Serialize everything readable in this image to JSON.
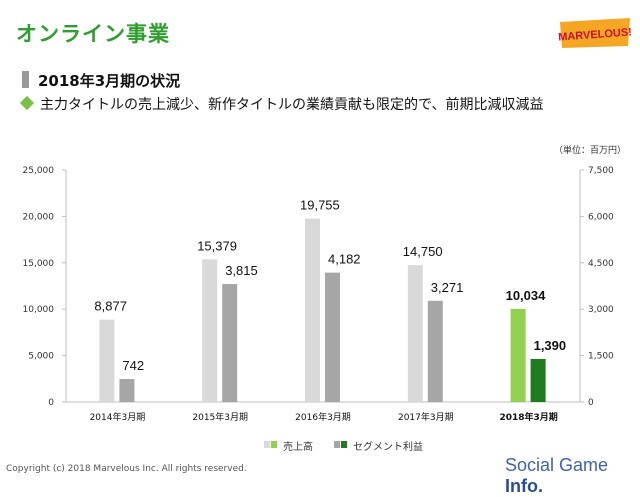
{
  "header": {
    "title": "オンライン事業",
    "logo_text": "MARVELOUS!",
    "section_title": "2018年3月期の状況",
    "bullet": "主力タイトルの売上減少、新作タイトルの業績貢献も限定的で、前期比減収減益"
  },
  "unit_label": "（単位：百万円）",
  "footer": {
    "copyright": "Copyright (c) 2018 Marvelous Inc. All rights reserved.",
    "watermark_main": "Social Game ",
    "watermark_bold": "Info."
  },
  "chart_data": {
    "type": "bar",
    "categories": [
      "2014年3月期",
      "2015年3月期",
      "2016年3月期",
      "2017年3月期",
      "2018年3月期"
    ],
    "highlight_index": 4,
    "series": [
      {
        "name": "売上高",
        "axis": "left",
        "values": [
          8877,
          15379,
          19755,
          14750,
          10034
        ],
        "labels": [
          "8,877",
          "15,379",
          "19,755",
          "14,750",
          "10,034"
        ],
        "color": "#d9d9d9",
        "highlight_color": "#92d050"
      },
      {
        "name": "セグメント利益",
        "axis": "right",
        "values": [
          742,
          3815,
          4182,
          3271,
          1390
        ],
        "labels": [
          "742",
          "3,815",
          "4,182",
          "3,271",
          "1,390"
        ],
        "color": "#a6a6a6",
        "highlight_color": "#1e7b1e"
      }
    ],
    "ylim_left": [
      0,
      25000
    ],
    "ylim_right": [
      0,
      7500
    ],
    "yticks_left": [
      "0",
      "5,000",
      "10,000",
      "15,000",
      "20,000",
      "25,000"
    ],
    "yticks_right": [
      "0",
      "1,500",
      "3,000",
      "4,500",
      "6,000",
      "7,500"
    ],
    "grid": false,
    "legend_position": "bottom"
  }
}
